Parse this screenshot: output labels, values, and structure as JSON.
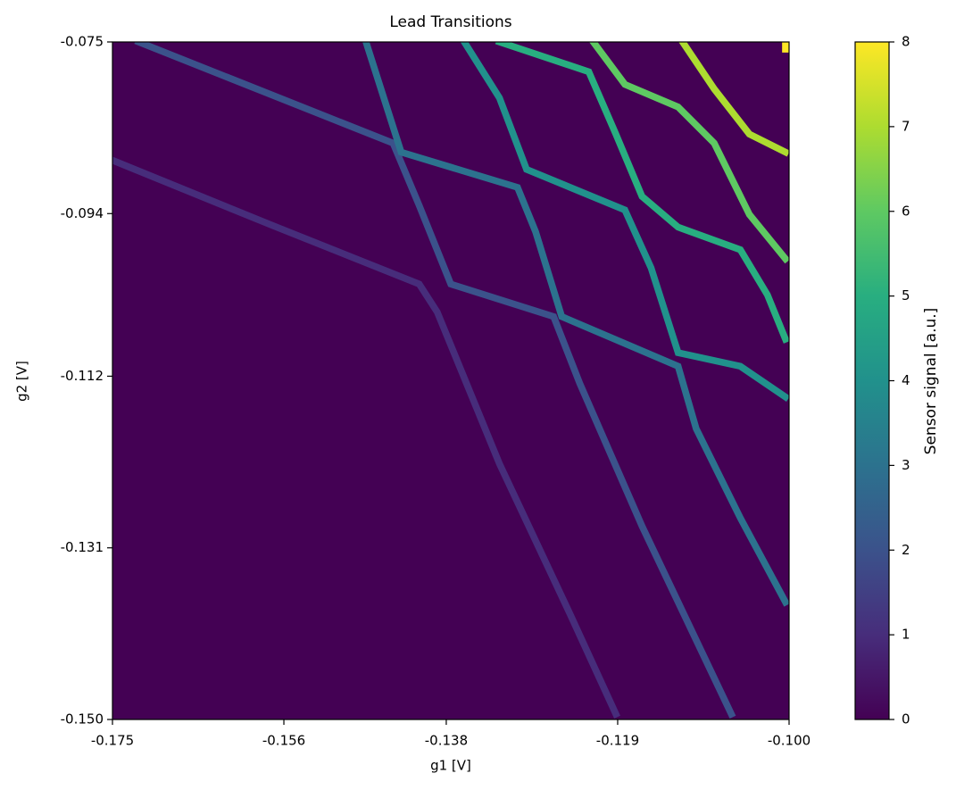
{
  "chart_data": {
    "type": "heatmap",
    "title": "Lead Transitions",
    "x_label": "g1 [V]",
    "y_label": "g2 [V]",
    "colorbar_label": "Sensor signal [a.u.]",
    "colormap": "viridis",
    "background": 0,
    "xlim": [
      -0.175,
      -0.1
    ],
    "ylim": [
      -0.15,
      -0.075
    ],
    "zlim": [
      0,
      8
    ],
    "xticks": [
      -0.175,
      -0.156,
      -0.138,
      -0.119,
      {
        "value": -0.1,
        "label": "-0.100"
      }
    ],
    "yticks": [
      -0.075,
      -0.094,
      -0.112,
      -0.131,
      {
        "value": -0.15,
        "label": "-0.150"
      }
    ],
    "zticks": [
      0,
      1,
      2,
      3,
      4,
      5,
      6,
      7,
      8
    ],
    "series": [
      {
        "value": 1,
        "x": [
          -0.175,
          -0.1578,
          -0.141,
          -0.139,
          -0.1321,
          -0.1242,
          -0.1192
        ],
        "y": [
          -0.0881,
          -0.0951,
          -0.1018,
          -0.1049,
          -0.1217,
          -0.1385,
          -0.1494
        ]
      },
      {
        "value": 2,
        "x": [
          -0.1721,
          -0.1439,
          -0.141,
          -0.1375,
          -0.1261,
          -0.1232,
          -0.1163,
          -0.1064
        ],
        "y": [
          -0.075,
          -0.0862,
          -0.0931,
          -0.1018,
          -0.1054,
          -0.1128,
          -0.1286,
          -0.1494
        ]
      },
      {
        "value": 3,
        "x": [
          -0.1469,
          -0.143,
          -0.1301,
          -0.1281,
          -0.1252,
          -0.1123,
          -0.1103,
          -0.1054,
          -0.1004
        ],
        "y": [
          -0.075,
          -0.0872,
          -0.0911,
          -0.096,
          -0.1054,
          -0.1109,
          -0.1178,
          -0.1277,
          -0.137
        ]
      },
      {
        "value": 4,
        "x": [
          -0.136,
          -0.1321,
          -0.1291,
          -0.1182,
          -0.1153,
          -0.1123,
          -0.1054,
          -0.1004
        ],
        "y": [
          -0.075,
          -0.0812,
          -0.0891,
          -0.0936,
          -0.1,
          -0.1094,
          -0.1109,
          -0.1143
        ]
      },
      {
        "value": 5,
        "x": [
          -0.1321,
          -0.1222,
          -0.1192,
          -0.1163,
          -0.1123,
          -0.1054,
          -0.1024,
          -0.1004
        ],
        "y": [
          -0.075,
          -0.0783,
          -0.0852,
          -0.0921,
          -0.0955,
          -0.098,
          -0.103,
          -0.1079
        ]
      },
      {
        "value": 6,
        "x": [
          -0.1217,
          -0.1182,
          -0.1123,
          -0.1083,
          -0.1044,
          -0.1004
        ],
        "y": [
          -0.075,
          -0.0797,
          -0.0822,
          -0.0862,
          -0.0941,
          -0.099
        ]
      },
      {
        "value": 7,
        "x": [
          -0.1118,
          -0.1083,
          -0.1044,
          -0.1004
        ],
        "y": [
          -0.075,
          -0.0802,
          -0.0852,
          -0.0872
        ]
      },
      {
        "value": 8,
        "x": [
          -0.1004,
          -0.1004
        ],
        "y": [
          -0.0752,
          -0.0758
        ]
      }
    ]
  }
}
